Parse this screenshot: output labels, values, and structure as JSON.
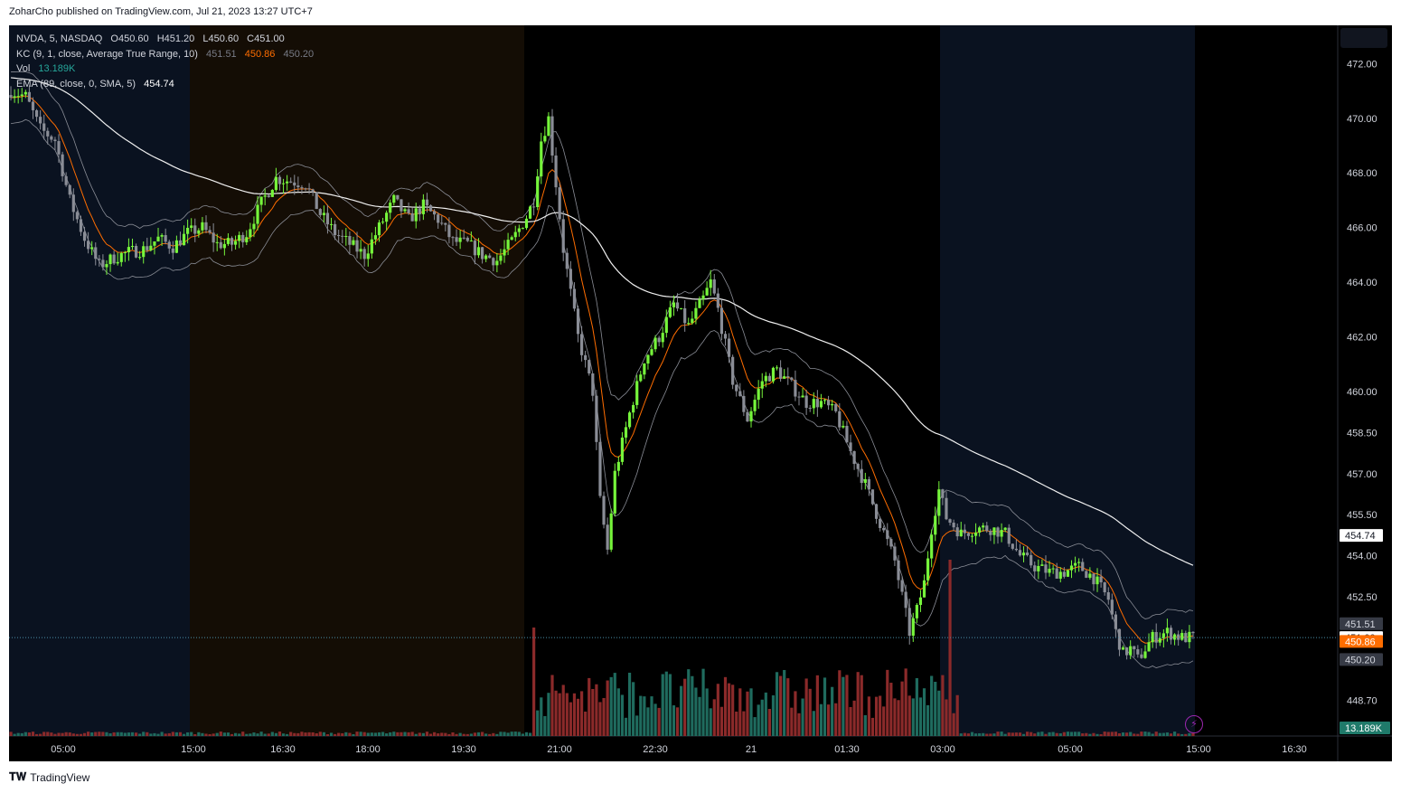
{
  "header": {
    "published": "ZoharCho published on TradingView.com, Jul 21, 2023 13:27 UTC+7"
  },
  "legend": {
    "symbol_line": "NVDA, 5, NASDAQ",
    "o": "O450.60",
    "h": "H451.20",
    "l": "L450.60",
    "c": "C451.00",
    "kc_label": "KC (9, 1, close, Average True Range, 10)",
    "kc_upper": "451.51",
    "kc_mid": "450.86",
    "kc_lower": "450.20",
    "vol_label": "Vol",
    "vol_value": "13.189K",
    "ema_label": "EMA (89, close, 0, SMA, 5)",
    "ema_value": "454.74"
  },
  "footer": {
    "brand": "TradingView"
  },
  "colors": {
    "up": "#76f53b",
    "down": "#8a8d96",
    "vol_up": "#1f6b5e",
    "vol_down": "#8b2a2a",
    "kc_mid": "#ff6d00",
    "kc_band": "#8a8d96",
    "ema": "#f0f0f0",
    "session_pre": "#0a1220",
    "session_after": "#140d05"
  },
  "chart_data": {
    "type": "candlestick",
    "symbol": "NVDA",
    "interval": "5",
    "exchange": "NASDAQ",
    "ylim": [
      447.4,
      473.4
    ],
    "y_ticks": [
      "472.00",
      "470.00",
      "468.00",
      "466.00",
      "464.00",
      "462.00",
      "460.00",
      "458.50",
      "457.00",
      "455.50",
      "454.00",
      "452.50",
      "448.70"
    ],
    "x_ticks": [
      "05:00",
      "15:00",
      "16:30",
      "18:00",
      "19:30",
      "21:00",
      "22:30",
      "21",
      "01:30",
      "03:00",
      "05:00",
      "15:00",
      "16:30"
    ],
    "price_labels": [
      {
        "text": "454.74",
        "value": 454.74,
        "bg": "#ffffff",
        "fg": "#131722"
      },
      {
        "text": "451.51",
        "value": 451.51,
        "bg": "#363a45",
        "fg": "#d1d4dc"
      },
      {
        "text": "451.00",
        "value": 451.0,
        "bg": "#ffffff",
        "fg": "#131722"
      },
      {
        "text": "450.86",
        "value": 450.86,
        "bg": "#ff6d00",
        "fg": "#ffffff"
      },
      {
        "text": "450.20",
        "value": 450.2,
        "bg": "#363a45",
        "fg": "#d1d4dc"
      }
    ],
    "volume_label": "13.189K",
    "last_price": 451.0,
    "anchors": [
      [
        0,
        471.0
      ],
      [
        4,
        470.8
      ],
      [
        8,
        469.6
      ],
      [
        12,
        469.2
      ],
      [
        16,
        467.0
      ],
      [
        20,
        465.6
      ],
      [
        24,
        464.6
      ],
      [
        28,
        464.9
      ],
      [
        32,
        465.1
      ],
      [
        36,
        465.2
      ],
      [
        40,
        465.6
      ],
      [
        44,
        465.3
      ],
      [
        48,
        465.8
      ],
      [
        52,
        466.0
      ],
      [
        56,
        465.4
      ],
      [
        60,
        465.4
      ],
      [
        64,
        465.8
      ],
      [
        68,
        466.9
      ],
      [
        72,
        467.8
      ],
      [
        76,
        467.7
      ],
      [
        80,
        467.6
      ],
      [
        84,
        466.5
      ],
      [
        88,
        465.8
      ],
      [
        92,
        465.4
      ],
      [
        96,
        465.0
      ],
      [
        100,
        466.0
      ],
      [
        104,
        467.0
      ],
      [
        108,
        466.3
      ],
      [
        112,
        466.8
      ],
      [
        116,
        466.3
      ],
      [
        120,
        465.5
      ],
      [
        124,
        465.4
      ],
      [
        128,
        465.0
      ],
      [
        132,
        464.8
      ],
      [
        136,
        465.5
      ],
      [
        140,
        466.4
      ],
      [
        142,
        467.0
      ],
      [
        144,
        469.2
      ],
      [
        146,
        470.0
      ],
      [
        150,
        465.2
      ],
      [
        154,
        462.0
      ],
      [
        158,
        460.0
      ],
      [
        160,
        456.0
      ],
      [
        162,
        454.2
      ],
      [
        164,
        457.0
      ],
      [
        168,
        459.2
      ],
      [
        172,
        461.2
      ],
      [
        176,
        462.0
      ],
      [
        180,
        463.2
      ],
      [
        184,
        462.4
      ],
      [
        188,
        463.4
      ],
      [
        190,
        464.0
      ],
      [
        192,
        463.0
      ],
      [
        196,
        460.4
      ],
      [
        200,
        459.0
      ],
      [
        204,
        460.4
      ],
      [
        208,
        460.8
      ],
      [
        212,
        460.2
      ],
      [
        216,
        459.6
      ],
      [
        220,
        459.6
      ],
      [
        224,
        459.2
      ],
      [
        228,
        457.8
      ],
      [
        232,
        456.6
      ],
      [
        236,
        455.2
      ],
      [
        240,
        453.8
      ],
      [
        242,
        452.5
      ],
      [
        244,
        451.2
      ],
      [
        246,
        452.0
      ],
      [
        248,
        453.0
      ],
      [
        250,
        455.0
      ],
      [
        252,
        456.4
      ],
      [
        254,
        455.4
      ],
      [
        258,
        454.8
      ],
      [
        262,
        455.0
      ],
      [
        266,
        455.0
      ],
      [
        270,
        454.8
      ],
      [
        274,
        454.0
      ],
      [
        278,
        453.6
      ],
      [
        282,
        453.4
      ],
      [
        286,
        453.4
      ],
      [
        290,
        453.6
      ],
      [
        294,
        453.2
      ],
      [
        298,
        452.4
      ],
      [
        300,
        451.2
      ],
      [
        302,
        450.4
      ],
      [
        304,
        450.6
      ],
      [
        306,
        450.2
      ],
      [
        310,
        451.0
      ],
      [
        314,
        451.2
      ],
      [
        318,
        451.0
      ],
      [
        321,
        451.0
      ]
    ]
  }
}
